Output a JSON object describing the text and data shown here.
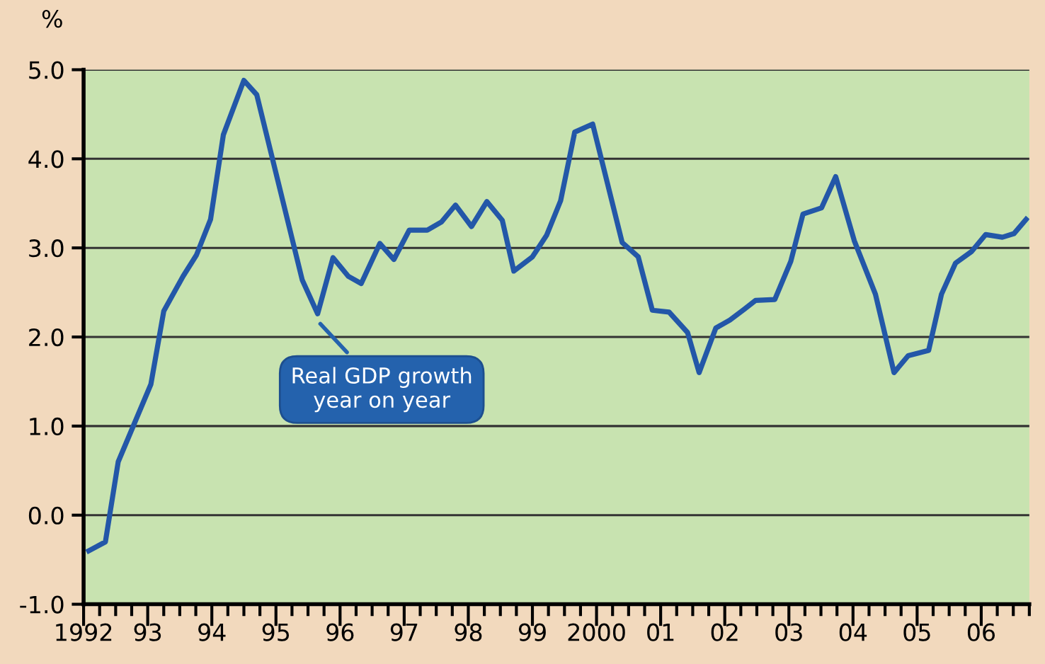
{
  "chart_data": {
    "type": "line",
    "ylabel": "%",
    "x": [
      1992.08,
      1992.34,
      1992.54,
      1993.05,
      1993.25,
      1993.55,
      1993.76,
      1993.98,
      1994.18,
      1994.5,
      1994.7,
      1995.41,
      1995.65,
      1995.89,
      1996.13,
      1996.33,
      1996.62,
      1996.84,
      1997.08,
      1997.36,
      1997.58,
      1997.8,
      1998.05,
      1998.29,
      1998.53,
      1998.71,
      1999.0,
      1999.22,
      1999.44,
      1999.66,
      1999.94,
      2000.4,
      2000.65,
      2000.87,
      2001.13,
      2001.42,
      2001.6,
      2001.86,
      2002.08,
      2002.3,
      2002.48,
      2002.78,
      2003.03,
      2003.22,
      2003.51,
      2003.73,
      2004.02,
      2004.35,
      2004.64,
      2004.86,
      2005.18,
      2005.38,
      2005.6,
      2005.85,
      2006.07,
      2006.33,
      2006.51,
      2006.7
    ],
    "series": [
      {
        "color": "#2357a8",
        "values": [
          -0.4,
          -0.3,
          0.6,
          1.47,
          2.29,
          2.68,
          2.92,
          3.32,
          4.27,
          4.88,
          4.72,
          2.64,
          2.26,
          2.89,
          2.68,
          2.6,
          3.05,
          2.87,
          3.2,
          3.2,
          3.29,
          3.48,
          3.24,
          3.52,
          3.31,
          2.74,
          2.9,
          3.14,
          3.53,
          4.3,
          4.39,
          3.06,
          2.9,
          2.3,
          2.28,
          2.05,
          1.6,
          2.1,
          2.19,
          2.31,
          2.41,
          2.42,
          2.85,
          3.38,
          3.45,
          3.8,
          3.08,
          2.48,
          1.6,
          1.79,
          1.85,
          2.48,
          2.83,
          2.96,
          3.15,
          3.12,
          3.16,
          3.32
        ]
      }
    ],
    "xlim": [
      1992,
      2006.75
    ],
    "xticks": [
      {
        "value": 1992,
        "label": "1992"
      },
      {
        "value": 1992.25,
        "label": null
      },
      {
        "value": 1992.5,
        "label": null
      },
      {
        "value": 1992.75,
        "label": null
      },
      {
        "value": 1993,
        "label": "93"
      },
      {
        "value": 1993.25,
        "label": null
      },
      {
        "value": 1993.5,
        "label": null
      },
      {
        "value": 1993.75,
        "label": null
      },
      {
        "value": 1994,
        "label": "94"
      },
      {
        "value": 1994.25,
        "label": null
      },
      {
        "value": 1994.5,
        "label": null
      },
      {
        "value": 1994.75,
        "label": null
      },
      {
        "value": 1995,
        "label": "95"
      },
      {
        "value": 1995.25,
        "label": null
      },
      {
        "value": 1995.5,
        "label": null
      },
      {
        "value": 1995.75,
        "label": null
      },
      {
        "value": 1996,
        "label": "96"
      },
      {
        "value": 1996.25,
        "label": null
      },
      {
        "value": 1996.5,
        "label": null
      },
      {
        "value": 1996.75,
        "label": null
      },
      {
        "value": 1997,
        "label": "97"
      },
      {
        "value": 1997.25,
        "label": null
      },
      {
        "value": 1997.5,
        "label": null
      },
      {
        "value": 1997.75,
        "label": null
      },
      {
        "value": 1998,
        "label": "98"
      },
      {
        "value": 1998.25,
        "label": null
      },
      {
        "value": 1998.5,
        "label": null
      },
      {
        "value": 1998.75,
        "label": null
      },
      {
        "value": 1999,
        "label": "99"
      },
      {
        "value": 1999.25,
        "label": null
      },
      {
        "value": 1999.5,
        "label": null
      },
      {
        "value": 1999.75,
        "label": null
      },
      {
        "value": 2000,
        "label": "2000"
      },
      {
        "value": 2000.25,
        "label": null
      },
      {
        "value": 2000.5,
        "label": null
      },
      {
        "value": 2000.75,
        "label": null
      },
      {
        "value": 2001,
        "label": "01"
      },
      {
        "value": 2001.25,
        "label": null
      },
      {
        "value": 2001.5,
        "label": null
      },
      {
        "value": 2001.75,
        "label": null
      },
      {
        "value": 2002,
        "label": "02"
      },
      {
        "value": 2002.25,
        "label": null
      },
      {
        "value": 2002.5,
        "label": null
      },
      {
        "value": 2002.75,
        "label": null
      },
      {
        "value": 2003,
        "label": "03"
      },
      {
        "value": 2003.25,
        "label": null
      },
      {
        "value": 2003.5,
        "label": null
      },
      {
        "value": 2003.75,
        "label": null
      },
      {
        "value": 2004,
        "label": "04"
      },
      {
        "value": 2004.25,
        "label": null
      },
      {
        "value": 2004.5,
        "label": null
      },
      {
        "value": 2004.75,
        "label": null
      },
      {
        "value": 2005,
        "label": "05"
      },
      {
        "value": 2005.25,
        "label": null
      },
      {
        "value": 2005.5,
        "label": null
      },
      {
        "value": 2005.75,
        "label": null
      },
      {
        "value": 2006,
        "label": "06"
      },
      {
        "value": 2006.25,
        "label": null
      },
      {
        "value": 2006.5,
        "label": null
      },
      {
        "value": 2006.75,
        "label": null
      }
    ],
    "ylim": [
      -1,
      5
    ],
    "yticks": [
      {
        "value": -1,
        "label": "-1.0"
      },
      {
        "value": 0,
        "label": "0.0"
      },
      {
        "value": 1,
        "label": "1.0"
      },
      {
        "value": 2,
        "label": "2.0"
      },
      {
        "value": 3,
        "label": "3.0"
      },
      {
        "value": 4,
        "label": "4.0"
      },
      {
        "value": 5,
        "label": "5.0"
      }
    ],
    "grid": "y",
    "line_style": "solid",
    "marker": "none",
    "annotations": [
      {
        "text": "Real GDP growth\nyear on year",
        "x": 1995.65,
        "y": 2.26
      }
    ]
  }
}
